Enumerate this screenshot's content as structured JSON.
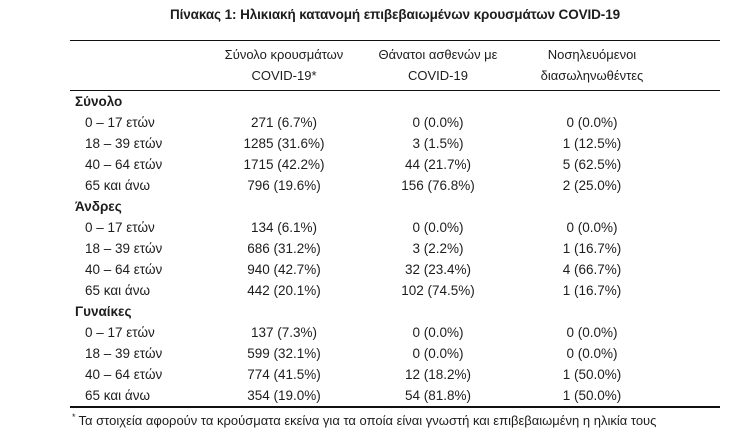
{
  "title": "Πίνακας 1: Ηλικιακή κατανομή επιβεβαιωμένων κρουσμάτων COVID-19",
  "colors": {
    "text": "#1d1d1b",
    "rule": "#111111",
    "background": "#ffffff"
  },
  "table": {
    "headers": [
      {
        "line1": "Σύνολο κρουσμάτων",
        "line2": "COVID-19*"
      },
      {
        "line1": "Θάνατοι ασθενών με",
        "line2": "COVID-19"
      },
      {
        "line1": "Νοσηλευόμενοι",
        "line2": "διασωληνωθέντες"
      }
    ],
    "sections": [
      {
        "label": "Σύνολο",
        "rows": [
          {
            "label": "0 – 17 ετών",
            "cases": "271 (6.7%)",
            "deaths": "0 (0.0%)",
            "intubated": "0 (0.0%)"
          },
          {
            "label": "18 – 39 ετών",
            "cases": "1285 (31.6%)",
            "deaths": "3 (1.5%)",
            "intubated": "1 (12.5%)"
          },
          {
            "label": "40 – 64 ετών",
            "cases": "1715 (42.2%)",
            "deaths": "44 (21.7%)",
            "intubated": "5 (62.5%)"
          },
          {
            "label": "65 και άνω",
            "cases": "796 (19.6%)",
            "deaths": "156 (76.8%)",
            "intubated": "2 (25.0%)"
          }
        ]
      },
      {
        "label": "Άνδρες",
        "rows": [
          {
            "label": "0 – 17 ετών",
            "cases": "134 (6.1%)",
            "deaths": "0 (0.0%)",
            "intubated": "0 (0.0%)"
          },
          {
            "label": "18 – 39 ετών",
            "cases": "686 (31.2%)",
            "deaths": "3 (2.2%)",
            "intubated": "1 (16.7%)"
          },
          {
            "label": "40 – 64 ετών",
            "cases": "940 (42.7%)",
            "deaths": "32 (23.4%)",
            "intubated": "4 (66.7%)"
          },
          {
            "label": "65 και άνω",
            "cases": "442 (20.1%)",
            "deaths": "102 (74.5%)",
            "intubated": "1 (16.7%)"
          }
        ]
      },
      {
        "label": "Γυναίκες",
        "rows": [
          {
            "label": "0 – 17 ετών",
            "cases": "137 (7.3%)",
            "deaths": "0 (0.0%)",
            "intubated": "0 (0.0%)"
          },
          {
            "label": "18 – 39 ετών",
            "cases": "599 (32.1%)",
            "deaths": "0 (0.0%)",
            "intubated": "0 (0.0%)"
          },
          {
            "label": "40 – 64 ετών",
            "cases": "774 (41.5%)",
            "deaths": "12 (18.2%)",
            "intubated": "1 (50.0%)"
          },
          {
            "label": "65 και άνω",
            "cases": "354 (19.0%)",
            "deaths": "54 (81.8%)",
            "intubated": "1 (50.0%)"
          }
        ]
      }
    ],
    "footnote_marker": "*",
    "footnote": "Τα στοιχεία αφορούν τα κρούσματα εκείνα για τα οποία είναι γνωστή και επιβεβαιωμένη η ηλικία τους"
  }
}
